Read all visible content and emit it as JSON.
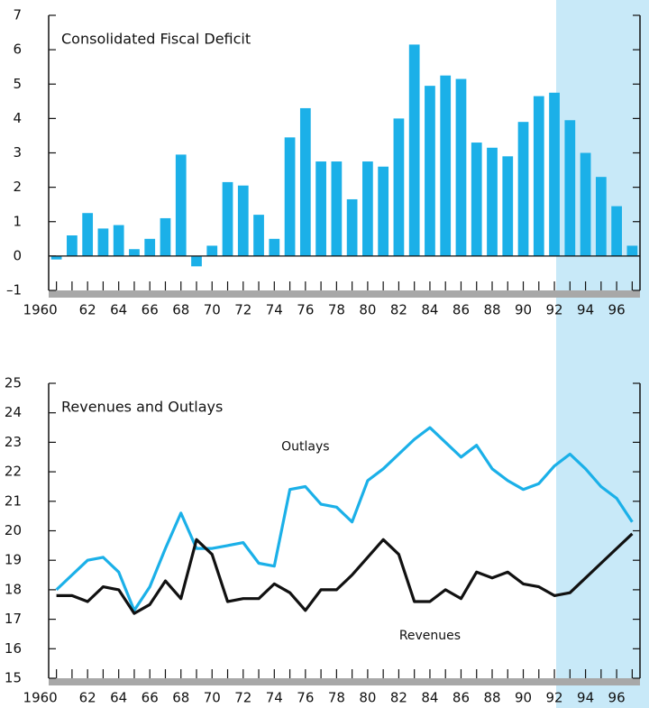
{
  "chart_data": [
    {
      "type": "bar",
      "title": "Consolidated Fiscal Deficit",
      "color": "#1bb0e8",
      "categories": [
        "1960",
        null,
        "62",
        null,
        "64",
        null,
        "66",
        null,
        "68",
        null,
        "70",
        null,
        "72",
        null,
        "74",
        null,
        "76",
        null,
        "78",
        null,
        "80",
        null,
        "82",
        null,
        "84",
        null,
        "86",
        null,
        "88",
        null,
        "90",
        null,
        "92",
        null,
        "94",
        null,
        "96",
        null
      ],
      "values": [
        -0.1,
        0.6,
        1.25,
        0.8,
        0.9,
        0.2,
        0.5,
        1.1,
        2.95,
        -0.3,
        0.3,
        2.15,
        2.05,
        1.2,
        0.5,
        3.45,
        4.3,
        2.75,
        2.75,
        1.65,
        2.75,
        2.6,
        4.0,
        6.15,
        4.95,
        5.25,
        5.15,
        3.3,
        3.15,
        2.9,
        3.9,
        4.65,
        4.75,
        3.95,
        3.0,
        2.3,
        1.45,
        0.3
      ],
      "ylim": [
        -1,
        7
      ],
      "yticks": [
        {
          "value": -1,
          "label": "–1"
        },
        0,
        1,
        2,
        3,
        4,
        5,
        6,
        7
      ]
    },
    {
      "type": "line",
      "title": "Revenues and Outlays",
      "categories": [
        "1960",
        null,
        "62",
        null,
        "64",
        null,
        "66",
        null,
        "68",
        null,
        "70",
        null,
        "72",
        null,
        "74",
        null,
        "76",
        null,
        "78",
        null,
        "80",
        null,
        "82",
        null,
        "84",
        null,
        "86",
        null,
        "88",
        null,
        "90",
        null,
        "92",
        null,
        "94",
        null,
        "96",
        null
      ],
      "series": [
        {
          "name": "Outlays",
          "color": "#1bb0e8",
          "values": [
            18.0,
            18.5,
            19.0,
            19.1,
            18.6,
            17.3,
            18.1,
            19.4,
            20.6,
            19.4,
            19.4,
            19.5,
            19.6,
            18.9,
            18.8,
            21.4,
            21.5,
            20.9,
            20.8,
            20.3,
            21.7,
            22.1,
            22.6,
            23.1,
            23.5,
            23.0,
            22.5,
            22.9,
            22.1,
            21.7,
            21.4,
            21.6,
            22.2,
            22.6,
            22.1,
            21.5,
            21.1,
            20.3
          ]
        },
        {
          "name": "Revenues",
          "color": "#111111",
          "values": [
            17.8,
            17.8,
            17.6,
            18.1,
            18.0,
            17.2,
            17.5,
            18.3,
            17.7,
            19.7,
            19.2,
            17.6,
            17.7,
            17.7,
            18.2,
            17.9,
            17.3,
            18.0,
            18.0,
            18.5,
            19.1,
            19.7,
            19.2,
            17.6,
            17.6,
            18.0,
            17.7,
            18.6,
            18.4,
            18.6,
            18.2,
            18.1,
            17.8,
            17.9,
            18.4,
            18.9,
            19.4,
            19.9
          ]
        }
      ],
      "ylim": [
        15,
        25
      ],
      "yticks": [
        15,
        16,
        17,
        18,
        19,
        20,
        21,
        22,
        23,
        24,
        25
      ]
    }
  ]
}
